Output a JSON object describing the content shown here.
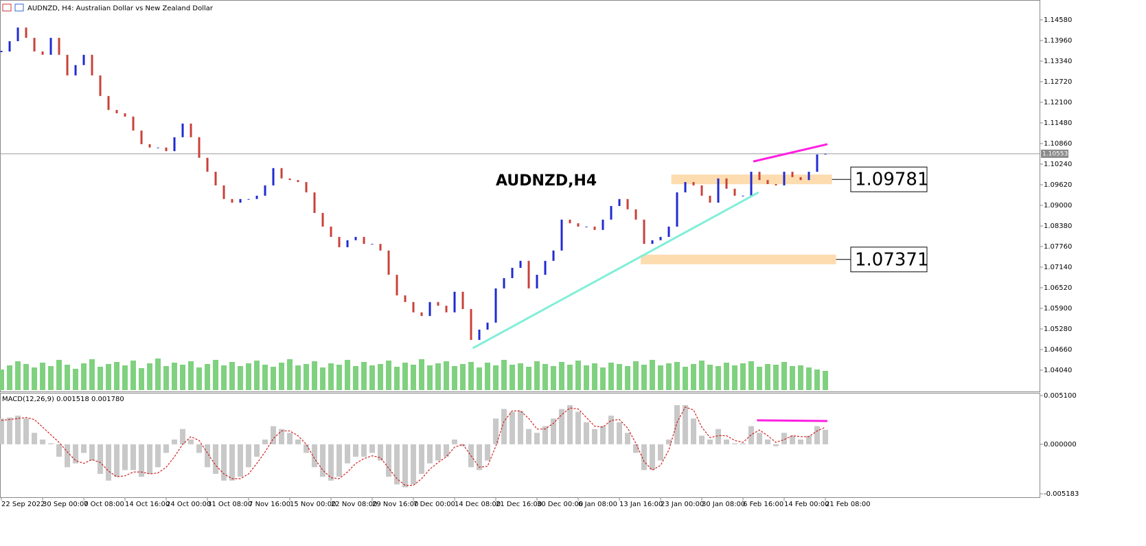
{
  "chart_data": {
    "type": "candlestick",
    "title": "AUDNZD, H4:  Australian Dollar vs New Zealand Dollar",
    "chart_label": "AUDNZD,H4",
    "up_color": "#1f2bd1",
    "down_color": "#c8413a",
    "volume_color": "#7fd17f",
    "macd_color": "#c8c8c8",
    "signal_color": "#d11f1f",
    "current_price": {
      "value": 1.10553,
      "label": "1.10553"
    },
    "close": [
      1.1363,
      1.1394,
      1.1435,
      1.1404,
      1.1363,
      1.1353,
      1.1404,
      1.1353,
      1.1291,
      1.1322,
      1.1353,
      1.1291,
      1.1229,
      1.1187,
      1.1177,
      1.1167,
      1.1125,
      1.1084,
      1.1074,
      1.1074,
      1.1063,
      1.1105,
      1.1146,
      1.1105,
      1.1043,
      1.1001,
      1.096,
      1.0919,
      1.0908,
      1.0919,
      1.0919,
      1.0929,
      1.096,
      1.1012,
      1.0981,
      1.0976,
      1.097,
      1.0939,
      1.0877,
      1.0836,
      1.0805,
      1.0774,
      1.0795,
      1.0805,
      1.0784,
      1.0784,
      1.0764,
      1.0691,
      1.0629,
      1.0609,
      1.0578,
      1.0567,
      1.0609,
      1.0598,
      1.0578,
      1.064,
      1.0588,
      1.0495,
      1.0526,
      1.0547,
      1.065,
      1.0681,
      1.0712,
      1.0733,
      1.065,
      1.0691,
      1.0733,
      1.0764,
      1.0857,
      1.0846,
      1.0836,
      1.0836,
      1.0826,
      1.0857,
      1.0898,
      1.0919,
      1.0888,
      1.0857,
      1.0784,
      1.0795,
      1.0805,
      1.0836,
      1.0939,
      1.097,
      1.096,
      1.0929,
      1.0908,
      1.0981,
      1.095,
      1.0929,
      1.0929,
      1.1001,
      1.0976,
      1.0964,
      1.096,
      1.1001,
      1.0985,
      1.0976,
      1.1001,
      1.1053,
      1.1055
    ],
    "volume": [
      30,
      36,
      42,
      38,
      33,
      40,
      35,
      44,
      37,
      31,
      39,
      45,
      34,
      38,
      41,
      36,
      43,
      32,
      39,
      46,
      35,
      40,
      37,
      42,
      33,
      38,
      44,
      36,
      41,
      35,
      39,
      43,
      37,
      34,
      40,
      45,
      36,
      38,
      42,
      33,
      39,
      37,
      44,
      35,
      41,
      36,
      38,
      43,
      34,
      40,
      37,
      45,
      36,
      39,
      42,
      35,
      38,
      41,
      33,
      40,
      36,
      44,
      37,
      39,
      34,
      42,
      38,
      35,
      41,
      37,
      43,
      36,
      39,
      33,
      40,
      38,
      35,
      42,
      37,
      44,
      36,
      39,
      41,
      34,
      38,
      43,
      37,
      35,
      40,
      36,
      39,
      42,
      34,
      38,
      37,
      41,
      35,
      36,
      33,
      30,
      28
    ],
    "macd": [
      0.0027,
      0.0028,
      0.003,
      0.0027,
      0.0012,
      0.0005,
      0.0001,
      -0.0013,
      -0.0024,
      -0.002,
      -0.0009,
      -0.0017,
      -0.0031,
      -0.0038,
      -0.0034,
      -0.0027,
      -0.0027,
      -0.0034,
      -0.0031,
      -0.0024,
      -0.0009,
      0.0005,
      0.0016,
      0.0005,
      -0.0009,
      -0.0024,
      -0.0031,
      -0.0038,
      -0.0038,
      -0.0034,
      -0.0024,
      -0.0013,
      0.0005,
      0.0019,
      0.0016,
      0.0012,
      0.0005,
      -0.0009,
      -0.0024,
      -0.0034,
      -0.0038,
      -0.0034,
      -0.002,
      -0.0013,
      -0.0013,
      -0.0009,
      -0.0017,
      -0.0034,
      -0.0042,
      -0.0045,
      -0.0042,
      -0.0031,
      -0.002,
      -0.0017,
      -0.0013,
      0.0005,
      -0.0002,
      -0.0024,
      -0.0027,
      -0.0017,
      0.0027,
      0.0037,
      0.0034,
      0.0035,
      0.0016,
      0.0012,
      0.0019,
      0.0027,
      0.0037,
      0.0041,
      0.0034,
      0.0023,
      0.0016,
      0.0019,
      0.003,
      0.0023,
      0.0012,
      -0.0009,
      -0.0027,
      -0.0027,
      -0.0017,
      0.0005,
      0.0041,
      0.0041,
      0.0027,
      0.0009,
      0.0005,
      0.0016,
      0.0005,
      0.0001,
      0.0001,
      0.0019,
      0.0012,
      0.0005,
      -0.0002,
      0.0012,
      0.0009,
      0.0005,
      0.0009,
      0.0019,
      0.001518
    ],
    "signal": [
      0.0025,
      0.0026,
      0.0027,
      0.0028,
      0.0026,
      0.0018,
      0.001,
      0.0002,
      -0.0008,
      -0.0017,
      -0.002,
      -0.0016,
      -0.0019,
      -0.0028,
      -0.0034,
      -0.0033,
      -0.0029,
      -0.0029,
      -0.0031,
      -0.003,
      -0.0024,
      -0.0013,
      0.0,
      0.0008,
      0.0004,
      -0.0009,
      -0.0022,
      -0.0031,
      -0.0036,
      -0.0036,
      -0.0031,
      -0.002,
      -0.0008,
      0.0006,
      0.0014,
      0.0014,
      0.0009,
      0.0,
      -0.0015,
      -0.0027,
      -0.0035,
      -0.0036,
      -0.0029,
      -0.002,
      -0.0015,
      -0.0012,
      -0.0014,
      -0.0025,
      -0.0036,
      -0.0043,
      -0.0043,
      -0.0036,
      -0.0026,
      -0.0019,
      -0.0013,
      -0.0003,
      0.0,
      -0.0012,
      -0.0024,
      -0.0023,
      -0.0002,
      0.0024,
      0.0035,
      0.0035,
      0.0027,
      0.0016,
      0.0016,
      0.0022,
      0.0031,
      0.0038,
      0.0037,
      0.0028,
      0.0019,
      0.0018,
      0.0025,
      0.0026,
      0.0017,
      0.0001,
      -0.0018,
      -0.0027,
      -0.0022,
      -0.0006,
      0.0023,
      0.0039,
      0.0036,
      0.0018,
      0.0007,
      0.0009,
      0.0009,
      0.0004,
      0.0002,
      0.001,
      0.0015,
      0.0009,
      0.0002,
      0.0005,
      0.0009,
      0.0008,
      0.0008,
      0.0014,
      0.00178
    ],
    "macd_label": "MACD(12,26,9) 0.001518 0.001780",
    "xlim": [
      -0.17,
      126.08
    ],
    "ylim": [
      1.03399,
      1.15179
    ],
    "y2lim": [
      -0.005183,
      0.0051
    ],
    "yticks": [
      {
        "value": 1.1458,
        "label": "1.14580"
      },
      {
        "value": 1.1396,
        "label": "1.13960"
      },
      {
        "value": 1.1334,
        "label": "1.13340"
      },
      {
        "value": 1.1272,
        "label": "1.12720"
      },
      {
        "value": 1.121,
        "label": "1.12100"
      },
      {
        "value": 1.1148,
        "label": "1.11480"
      },
      {
        "value": 1.1086,
        "label": "1.10860"
      },
      {
        "value": 1.1024,
        "label": "1.10240"
      },
      {
        "value": 1.0962,
        "label": "1.09620"
      },
      {
        "value": 1.09,
        "label": "1.09000"
      },
      {
        "value": 1.0838,
        "label": "1.08380"
      },
      {
        "value": 1.0776,
        "label": "1.07760"
      },
      {
        "value": 1.0714,
        "label": "1.07140"
      },
      {
        "value": 1.0652,
        "label": "1.06520"
      },
      {
        "value": 1.059,
        "label": "1.05900"
      },
      {
        "value": 1.0528,
        "label": "1.05280"
      },
      {
        "value": 1.0466,
        "label": "1.04660"
      },
      {
        "value": 1.0404,
        "label": "1.04040"
      }
    ],
    "y2ticks": [
      {
        "value": 0.0051,
        "label": "0.005100"
      },
      {
        "value": 0,
        "label": "0.000000"
      },
      {
        "value": -0.005183,
        "label": "-0.005183"
      }
    ],
    "xticks": [
      {
        "value": 0,
        "label": "22 Sep 2022"
      },
      {
        "value": 5,
        "label": "30 Sep 00:00"
      },
      {
        "value": 10,
        "label": "7 Oct 08:00"
      },
      {
        "value": 15,
        "label": "14 Oct 16:00"
      },
      {
        "value": 20,
        "label": "24 Oct 00:00"
      },
      {
        "value": 25,
        "label": "31 Oct 08:00"
      },
      {
        "value": 30,
        "label": "7 Nov 16:00"
      },
      {
        "value": 35,
        "label": "15 Nov 00:00"
      },
      {
        "value": 40,
        "label": "22 Nov 08:00"
      },
      {
        "value": 45,
        "label": "29 Nov 16:00"
      },
      {
        "value": 50,
        "label": "7 Dec 00:00"
      },
      {
        "value": 55,
        "label": "14 Dec 08:00"
      },
      {
        "value": 60,
        "label": "21 Dec 16:00"
      },
      {
        "value": 65,
        "label": "30 Dec 00:00"
      },
      {
        "value": 70,
        "label": "6 Jan 08:00"
      },
      {
        "value": 75,
        "label": "13 Jan 16:00"
      },
      {
        "value": 80,
        "label": "23 Jan 00:00"
      },
      {
        "value": 85,
        "label": "30 Jan 08:00"
      },
      {
        "value": 90,
        "label": "6 Feb 16:00"
      },
      {
        "value": 95,
        "label": "14 Feb 00:00"
      },
      {
        "value": 100,
        "label": "21 Feb 08:00"
      }
    ],
    "zones": [
      {
        "value": 1.09781,
        "label": "1.09781",
        "x": [
          81.3,
          100.8
        ],
        "color": "#fddcb0"
      },
      {
        "value": 1.07371,
        "label": "1.07371",
        "x": [
          77.6,
          101.3
        ],
        "color": "#fddcb0"
      }
    ],
    "trendlines": [
      {
        "color": "#7fefd8",
        "x": [
          57.2,
          91.9
        ],
        "y": [
          1.047,
          1.0939
        ]
      },
      {
        "color": "#ff1fe0",
        "x": [
          91.25,
          100.25
        ],
        "y": [
          1.1032,
          1.1084
        ]
      }
    ],
    "macd_trendline": {
      "color": "#ff1fe0",
      "x": [
        91.7,
        100.25
      ],
      "y": [
        0.00251,
        0.00244
      ]
    }
  }
}
